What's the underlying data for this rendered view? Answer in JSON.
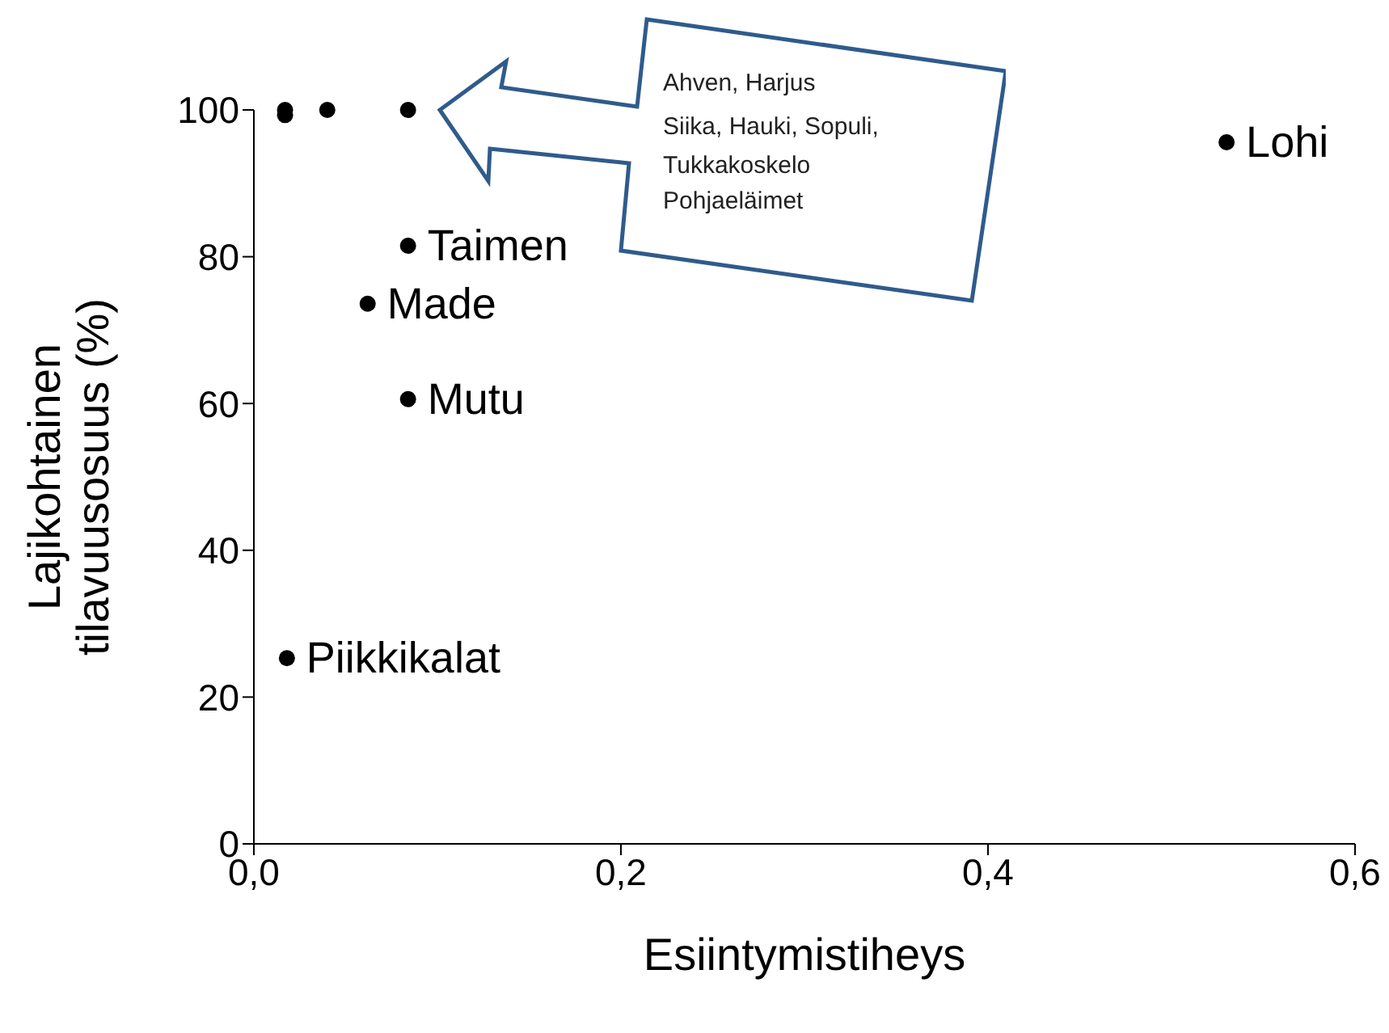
{
  "chart_data": {
    "type": "scatter",
    "xlabel": "Esiintymistiheys",
    "ylabel": "Lajikohtainen\ntilavuusosuus (%)",
    "x": [
      0.017,
      0.017,
      0.04,
      0.084,
      0.53,
      0.084,
      0.062,
      0.084,
      0.018
    ],
    "series": [
      {
        "color": "#000000",
        "values": [
          100,
          99.3,
          100,
          100,
          95.6,
          81.5,
          73.6,
          60.6,
          25.3
        ],
        "value_labels": [
          null,
          null,
          null,
          null,
          "Lohi",
          "Taimen",
          "Made",
          "Mutu",
          "Piikkikalat"
        ]
      }
    ],
    "xlim": [
      0,
      0.6
    ],
    "xticks": [
      {
        "value": 0,
        "label": "0,0"
      },
      {
        "value": 0.2,
        "label": "0,2"
      },
      {
        "value": 0.4,
        "label": "0,4"
      },
      {
        "value": 0.6,
        "label": "0,6"
      }
    ],
    "ylim": [
      0,
      100
    ],
    "yticks": [
      0,
      20,
      40,
      60,
      80,
      100
    ],
    "marker": "circle",
    "grid": false,
    "legend": false,
    "annotations": [
      "Ahven, Harjus",
      "Siika, Hauki, Sopuli,",
      "Tukkakoskelo",
      "Pohjaeläimet"
    ]
  }
}
